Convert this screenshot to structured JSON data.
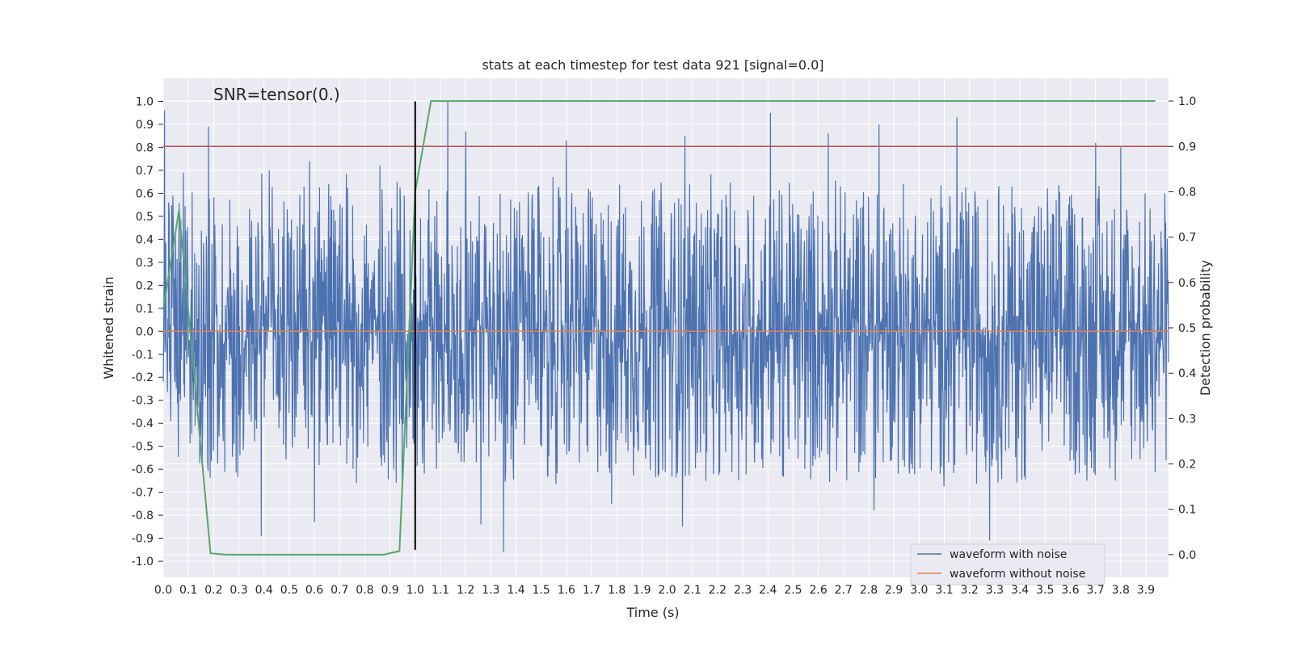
{
  "chart_data": {
    "type": "line",
    "title": "stats at each timestep for test data 921 [signal=0.0]",
    "xlabel": "Time (s)",
    "ylabel": "Whitened strain",
    "y2label": "Detection probability",
    "annotation": "SNR=tensor(0.)",
    "xlim": [
      0.0,
      3.99
    ],
    "ylim": [
      -1.07,
      1.1
    ],
    "y2lim": [
      -0.05,
      1.05
    ],
    "x_ticks": [
      "0.0",
      "0.1",
      "0.2",
      "0.3",
      "0.4",
      "0.5",
      "0.6",
      "0.7",
      "0.8",
      "0.9",
      "1.0",
      "1.1",
      "1.2",
      "1.3",
      "1.4",
      "1.5",
      "1.6",
      "1.7",
      "1.8",
      "1.9",
      "2.0",
      "2.1",
      "2.2",
      "2.3",
      "2.4",
      "2.5",
      "2.6",
      "2.7",
      "2.8",
      "2.9",
      "3.0",
      "3.1",
      "3.2",
      "3.3",
      "3.4",
      "3.5",
      "3.6",
      "3.7",
      "3.8",
      "3.9"
    ],
    "y_ticks": [
      "1.0",
      "0.9",
      "0.8",
      "0.7",
      "0.6",
      "0.5",
      "0.4",
      "0.3",
      "0.2",
      "0.1",
      "0.0",
      "-0.1",
      "-0.2",
      "-0.3",
      "-0.4",
      "-0.5",
      "-0.6",
      "-0.7",
      "-0.8",
      "-0.9",
      "-1.0"
    ],
    "y2_ticks": [
      "1.0",
      "0.9",
      "0.8",
      "0.7",
      "0.6",
      "0.5",
      "0.4",
      "0.3",
      "0.2",
      "0.1",
      "0.0"
    ],
    "grid": true,
    "legend_position": "bottom-right",
    "colors": {
      "waveform_with_noise": "#4c72b0",
      "waveform_without_noise": "#dd8452",
      "detection_probability": "#55a868",
      "threshold": "#c44e52",
      "marker": "#000000",
      "plot_bg": "#eaeaf2",
      "grid": "#ffffff"
    },
    "series": [
      {
        "name": "waveform with noise",
        "axis": "left",
        "noise_amplitude": 0.65,
        "peaks": [
          {
            "x": 0.005,
            "y": 0.96
          },
          {
            "x": 0.08,
            "y": 0.69
          },
          {
            "x": 0.18,
            "y": 0.89
          },
          {
            "x": 0.42,
            "y": 0.7
          },
          {
            "x": 0.58,
            "y": 0.74
          },
          {
            "x": 0.86,
            "y": 0.72
          },
          {
            "x": 1.13,
            "y": 1.0
          },
          {
            "x": 1.2,
            "y": 0.87
          },
          {
            "x": 1.6,
            "y": 0.83
          },
          {
            "x": 2.07,
            "y": 0.85
          },
          {
            "x": 2.41,
            "y": 0.95
          },
          {
            "x": 2.64,
            "y": 0.86
          },
          {
            "x": 2.84,
            "y": 0.9
          },
          {
            "x": 3.15,
            "y": 0.93
          },
          {
            "x": 3.28,
            "y": 0.8
          },
          {
            "x": 3.7,
            "y": 0.82
          },
          {
            "x": 3.8,
            "y": 0.8
          },
          {
            "x": 0.39,
            "y": -0.89
          },
          {
            "x": 0.6,
            "y": -0.83
          },
          {
            "x": 1.35,
            "y": -0.96
          },
          {
            "x": 1.26,
            "y": -0.84
          },
          {
            "x": 2.06,
            "y": -0.85
          },
          {
            "x": 2.82,
            "y": -0.78
          },
          {
            "x": 3.28,
            "y": -0.91
          },
          {
            "x": 1.78,
            "y": -0.75
          }
        ]
      },
      {
        "name": "waveform without noise",
        "axis": "left",
        "x": [
          0.0,
          3.99
        ],
        "y": [
          0.0,
          0.0
        ]
      },
      {
        "axis": "right",
        "x": [
          0.0,
          0.0625,
          0.1875,
          0.25,
          0.8755,
          0.9375,
          1.0,
          1.0625,
          1.125,
          3.9375
        ],
        "y": [
          0.54,
          0.76,
          0.003,
          0.0,
          0.0,
          0.008,
          0.8,
          1.0,
          1.0,
          1.0
        ]
      }
    ],
    "threshold_y2": 0.9,
    "vertical_marker_x": 1.0,
    "vertical_marker_range": [
      -0.95,
      1.0
    ]
  }
}
